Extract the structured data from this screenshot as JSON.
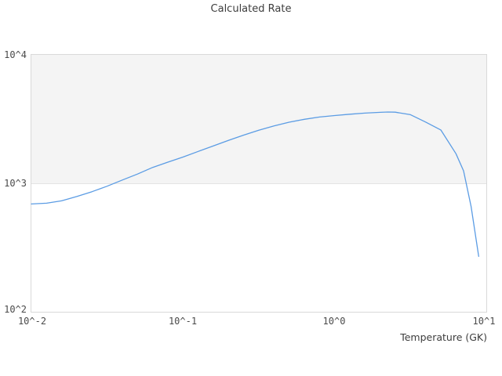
{
  "title": "Calculated Rate",
  "x_axis": {
    "label": "Temperature (GK)",
    "tick_labels": [
      "10^-2",
      "10^-1",
      "10^0",
      "10^1"
    ]
  },
  "y_axis": {
    "label": "",
    "tick_labels": [
      "10^4",
      "10^3",
      "10^2"
    ]
  },
  "colors": {
    "band": "#f4f4f4",
    "gridline": "#e3e3e3",
    "plot_border": "#d9d9d9",
    "line": "#5b9ce4",
    "title_text": "#3d3d3d",
    "tick_text": "#4a4a4a"
  },
  "chart_data": {
    "type": "line",
    "title": "Calculated Rate",
    "xlabel": "Temperature (GK)",
    "ylabel": "",
    "xscale": "log",
    "yscale": "log",
    "xlim": [
      0.01,
      10
    ],
    "ylim": [
      100,
      10000
    ],
    "x_tick_labels": [
      "10^-2",
      "10^-1",
      "10^0",
      "10^1"
    ],
    "y_tick_labels": [
      "10^4",
      "10^3",
      "10^2"
    ],
    "grid": "horizontal decade band 1e3-1e4 shaded light gray; gridline at 1e3",
    "legend_position": "none",
    "line_color": "#5b9ce4",
    "series": [
      {
        "name": "Calculated Rate",
        "points": [
          [
            0.01,
            690
          ],
          [
            0.0126,
            700
          ],
          [
            0.0158,
            730
          ],
          [
            0.02,
            790
          ],
          [
            0.0251,
            860
          ],
          [
            0.0316,
            950
          ],
          [
            0.0398,
            1060
          ],
          [
            0.0501,
            1180
          ],
          [
            0.0631,
            1330
          ],
          [
            0.0794,
            1460
          ],
          [
            0.1,
            1600
          ],
          [
            0.126,
            1770
          ],
          [
            0.158,
            1950
          ],
          [
            0.2,
            2160
          ],
          [
            0.251,
            2370
          ],
          [
            0.316,
            2590
          ],
          [
            0.398,
            2800
          ],
          [
            0.501,
            2990
          ],
          [
            0.631,
            3150
          ],
          [
            0.794,
            3280
          ],
          [
            1.0,
            3370
          ],
          [
            1.26,
            3450
          ],
          [
            1.58,
            3520
          ],
          [
            2.0,
            3570
          ],
          [
            2.24,
            3590
          ],
          [
            2.51,
            3580
          ],
          [
            3.16,
            3420
          ],
          [
            3.98,
            3000
          ],
          [
            5.01,
            2600
          ],
          [
            6.31,
            1700
          ],
          [
            7.08,
            1250
          ],
          [
            7.94,
            660
          ],
          [
            8.91,
            270
          ]
        ]
      }
    ]
  }
}
